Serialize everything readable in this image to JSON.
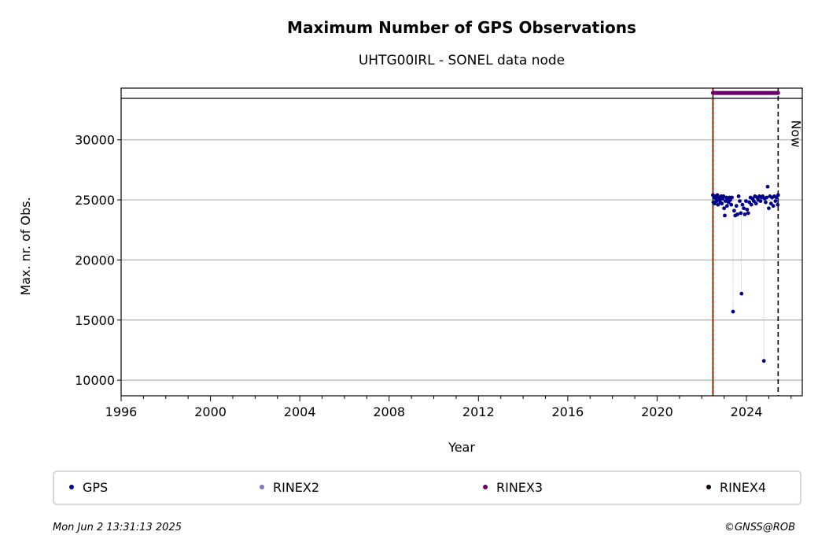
{
  "chart_data": {
    "type": "scatter",
    "title": "Maximum Number of GPS Observations",
    "subtitle": "UHTG00IRL - SONEL data node",
    "xlabel": "Year",
    "ylabel": "Max. nr. of Obs.",
    "xlim": [
      1996,
      2026.5
    ],
    "ylim": [
      8700,
      34300
    ],
    "xticks": [
      1996,
      2000,
      2004,
      2008,
      2012,
      2016,
      2020,
      2024
    ],
    "yticks": [
      10000,
      15000,
      20000,
      25000,
      30000
    ],
    "grid": "horizontal",
    "now_label": "Now",
    "now_x": 2025.42,
    "start_x": 2022.5,
    "rinex3_span": [
      2022.5,
      2025.42
    ],
    "rinex3_y": 33900,
    "series": [
      {
        "name": "GPS",
        "color": "#00008b",
        "points": [
          [
            2022.5,
            25400
          ],
          [
            2022.52,
            24800
          ],
          [
            2022.55,
            25200
          ],
          [
            2022.58,
            24700
          ],
          [
            2022.6,
            25300
          ],
          [
            2022.63,
            25100
          ],
          [
            2022.66,
            24900
          ],
          [
            2022.7,
            25400
          ],
          [
            2022.73,
            24600
          ],
          [
            2022.76,
            25200
          ],
          [
            2022.8,
            25000
          ],
          [
            2022.83,
            24800
          ],
          [
            2022.87,
            25300
          ],
          [
            2022.9,
            24700
          ],
          [
            2022.93,
            25100
          ],
          [
            2022.97,
            25300
          ],
          [
            2023.0,
            24300
          ],
          [
            2023.03,
            23700
          ],
          [
            2023.06,
            24900
          ],
          [
            2023.1,
            25200
          ],
          [
            2023.13,
            24500
          ],
          [
            2023.17,
            25100
          ],
          [
            2023.2,
            24800
          ],
          [
            2023.24,
            25200
          ],
          [
            2023.28,
            25000
          ],
          [
            2023.32,
            24600
          ],
          [
            2023.35,
            25200
          ],
          [
            2023.4,
            15700
          ],
          [
            2023.45,
            24100
          ],
          [
            2023.5,
            23700
          ],
          [
            2023.55,
            24500
          ],
          [
            2023.6,
            23800
          ],
          [
            2023.65,
            25300
          ],
          [
            2023.7,
            24900
          ],
          [
            2023.75,
            23900
          ],
          [
            2023.78,
            17200
          ],
          [
            2023.82,
            24600
          ],
          [
            2023.88,
            24300
          ],
          [
            2023.93,
            23800
          ],
          [
            2023.98,
            24900
          ],
          [
            2024.03,
            24200
          ],
          [
            2024.08,
            23900
          ],
          [
            2024.13,
            24800
          ],
          [
            2024.18,
            25200
          ],
          [
            2024.22,
            24600
          ],
          [
            2024.28,
            25100
          ],
          [
            2024.33,
            24900
          ],
          [
            2024.38,
            25300
          ],
          [
            2024.43,
            24700
          ],
          [
            2024.48,
            25200
          ],
          [
            2024.53,
            25000
          ],
          [
            2024.58,
            25300
          ],
          [
            2024.63,
            24900
          ],
          [
            2024.68,
            25200
          ],
          [
            2024.73,
            25300
          ],
          [
            2024.78,
            11600
          ],
          [
            2024.82,
            25100
          ],
          [
            2024.86,
            24800
          ],
          [
            2024.9,
            25200
          ],
          [
            2024.95,
            26100
          ],
          [
            2025.0,
            24300
          ],
          [
            2025.05,
            25300
          ],
          [
            2025.1,
            24700
          ],
          [
            2025.15,
            25200
          ],
          [
            2025.2,
            24500
          ],
          [
            2025.25,
            25300
          ],
          [
            2025.3,
            24900
          ],
          [
            2025.35,
            25200
          ],
          [
            2025.4,
            24600
          ],
          [
            2025.42,
            25400
          ]
        ]
      },
      {
        "name": "RINEX2",
        "color": "#7b7bb8",
        "points": []
      },
      {
        "name": "RINEX3",
        "color": "#660066",
        "points": []
      },
      {
        "name": "RINEX4",
        "color": "#1a0010",
        "points": []
      }
    ],
    "legend": [
      "GPS",
      "RINEX2",
      "RINEX3",
      "RINEX4"
    ],
    "legend_placement": "bottom"
  },
  "footer": {
    "timestamp": "Mon Jun  2 13:31:13 2025",
    "credit": "©GNSS@ROB"
  }
}
